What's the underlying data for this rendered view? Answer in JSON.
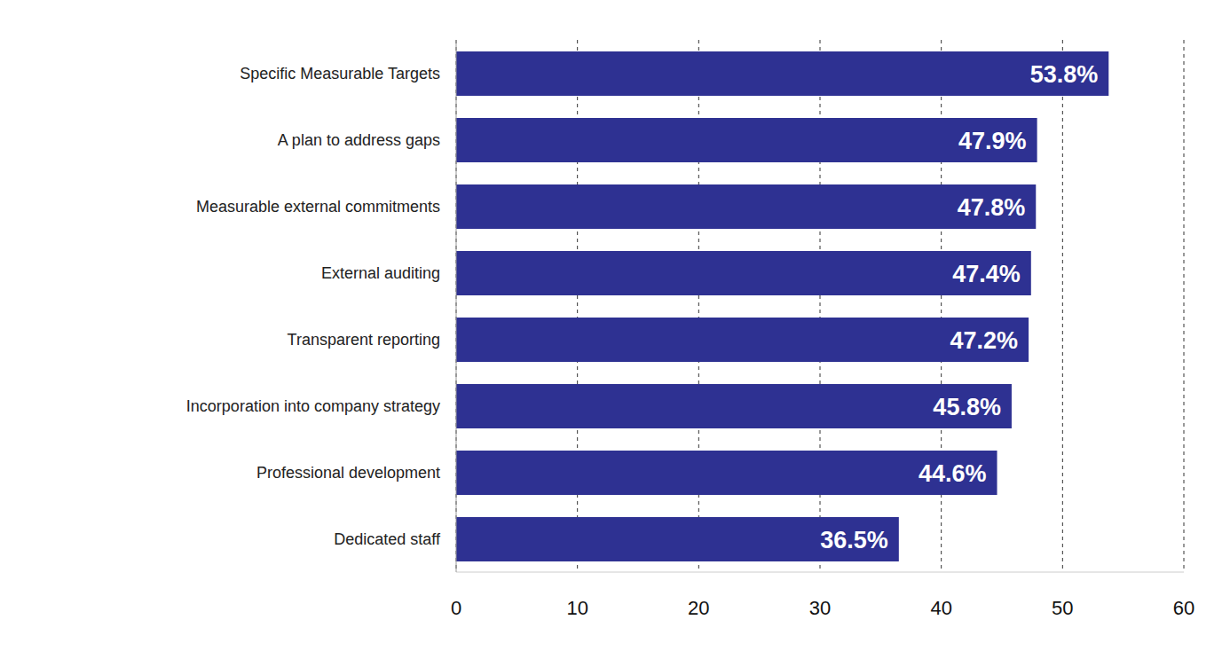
{
  "chart_data": {
    "type": "bar",
    "orientation": "horizontal",
    "categories": [
      "Specific Measurable Targets",
      "A plan to address gaps",
      "Measurable external commitments",
      "External auditing",
      "Transparent reporting",
      "Incorporation into company strategy",
      "Professional development",
      "Dedicated staff"
    ],
    "values": [
      53.8,
      47.9,
      47.8,
      47.4,
      47.2,
      45.8,
      44.6,
      36.5
    ],
    "value_labels": [
      "53.8%",
      "47.9%",
      "47.8%",
      "47.4%",
      "47.2%",
      "45.8%",
      "44.6%",
      "36.5%"
    ],
    "color": "#2e3192",
    "xlim": [
      0,
      60
    ],
    "xticks": [
      0,
      10,
      20,
      30,
      40,
      50,
      60
    ],
    "grid": true,
    "data_labels": true
  }
}
